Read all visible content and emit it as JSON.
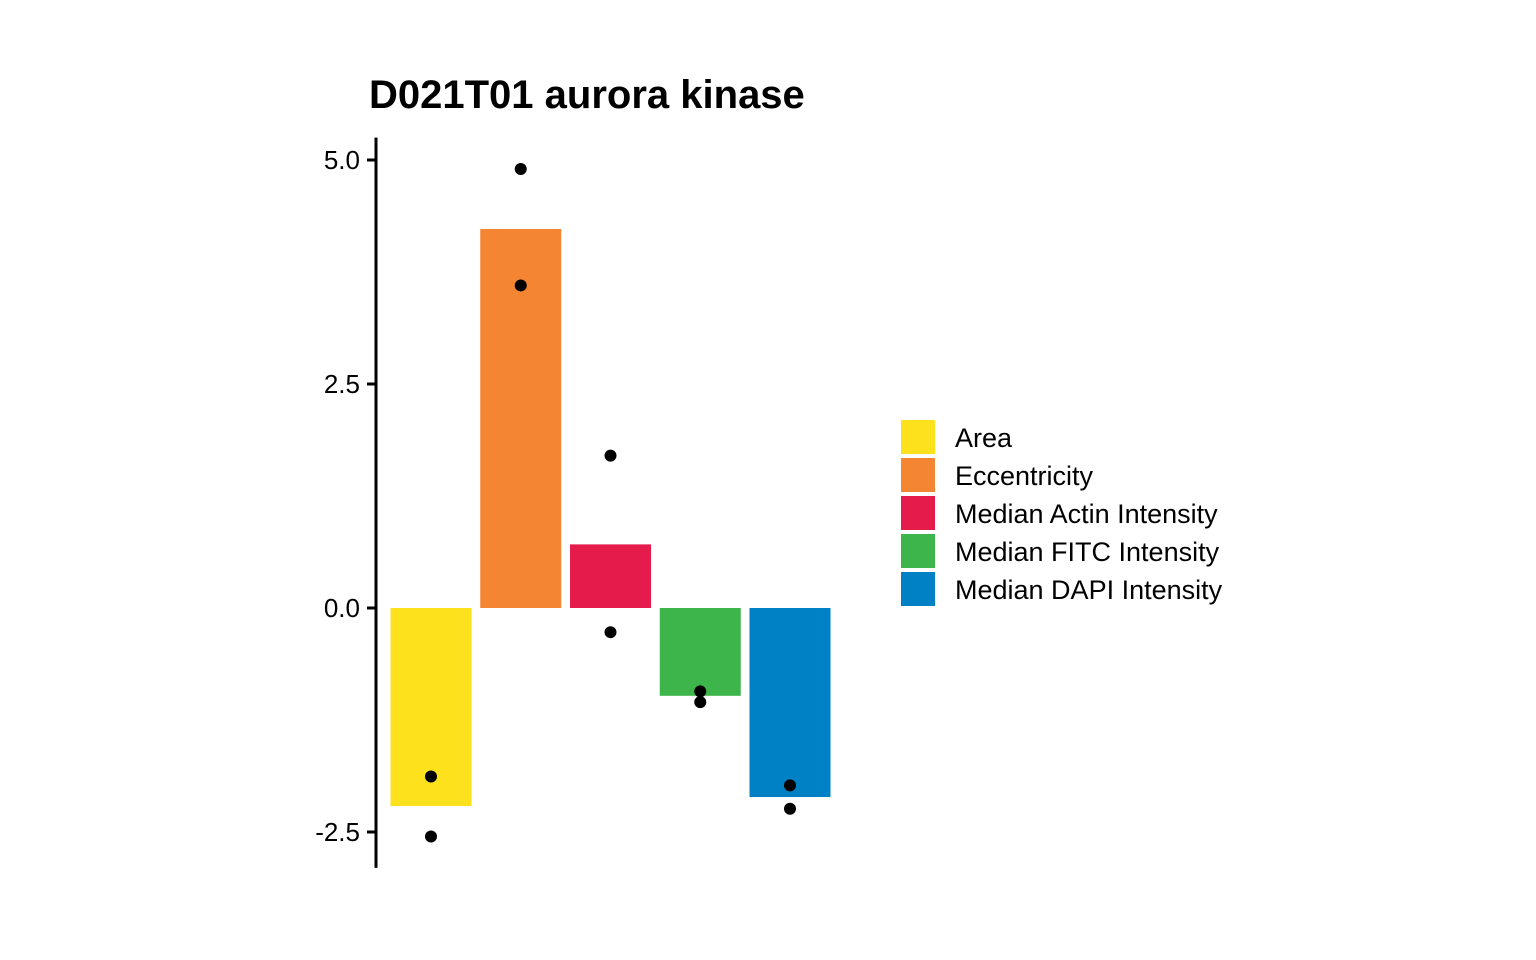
{
  "chart_data": {
    "type": "bar",
    "title": "D021T01 aurora kinase",
    "xlabel": "",
    "ylabel": "",
    "ylim": [
      -2.9,
      5.25
    ],
    "yticks": [
      5.0,
      2.5,
      0.0,
      -2.5
    ],
    "ytick_labels": [
      "5.0",
      "2.5",
      "0.0",
      "-2.5"
    ],
    "grid": false,
    "legend_position": "right",
    "categories": [
      "Area",
      "Eccentricity",
      "Median Actin Intensity",
      "Median FITC Intensity",
      "Median DAPI Intensity"
    ],
    "values": [
      -2.21,
      4.23,
      0.71,
      -0.98,
      -2.11
    ],
    "colors": [
      "#FDE11C",
      "#F48532",
      "#E51B4B",
      "#3DB54A",
      "#0081C6"
    ],
    "points": [
      [
        -1.88,
        -2.55
      ],
      [
        4.9,
        3.6
      ],
      [
        1.7,
        -0.27
      ],
      [
        -0.93,
        -1.05
      ],
      [
        -1.98,
        -2.24
      ]
    ]
  }
}
